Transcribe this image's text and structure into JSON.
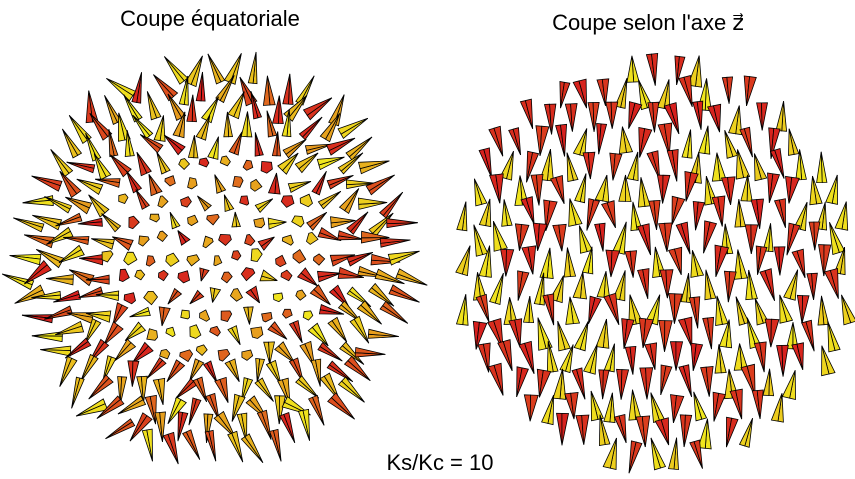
{
  "left_panel": {
    "title": "Coupe équatoriale"
  },
  "right_panel": {
    "title": "Coupe selon l'axe z⃗"
  },
  "caption": "Ks/Kc = 10"
}
